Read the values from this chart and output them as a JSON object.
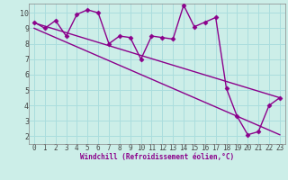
{
  "bg_color": "#cceee8",
  "line_color": "#8b008b",
  "grid_color": "#aadddd",
  "xlabel": "Windchill (Refroidissement éolien,°C)",
  "ylim": [
    1.5,
    10.6
  ],
  "xlim": [
    -0.5,
    23.5
  ],
  "yticks": [
    2,
    3,
    4,
    5,
    6,
    7,
    8,
    9,
    10
  ],
  "xticks": [
    0,
    1,
    2,
    3,
    4,
    5,
    6,
    7,
    8,
    9,
    10,
    11,
    12,
    13,
    14,
    15,
    16,
    17,
    18,
    19,
    20,
    21,
    22,
    23
  ],
  "series1_x": [
    0,
    1,
    2,
    3,
    4,
    5,
    6,
    7,
    8,
    9,
    10,
    11,
    12,
    13,
    14,
    15,
    16,
    17,
    18,
    19,
    20,
    21,
    22,
    23
  ],
  "series1_y": [
    9.4,
    9.0,
    9.5,
    8.5,
    9.9,
    10.2,
    10.0,
    8.0,
    8.5,
    8.4,
    7.0,
    8.5,
    8.4,
    8.3,
    10.5,
    9.1,
    9.4,
    9.7,
    5.1,
    3.3,
    2.1,
    2.3,
    4.0,
    4.5
  ],
  "series2_x": [
    0,
    23
  ],
  "series2_y": [
    9.35,
    4.5
  ],
  "series3_x": [
    0,
    23
  ],
  "series3_y": [
    9.0,
    2.1
  ],
  "marker": "D",
  "markersize": 2.5,
  "linewidth": 1.0
}
